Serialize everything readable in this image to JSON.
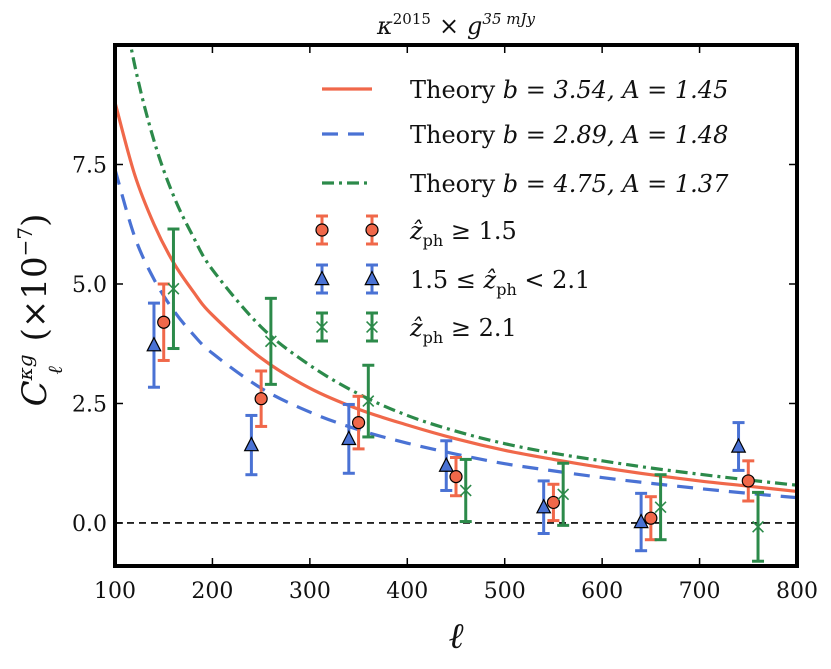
{
  "chart_data": {
    "type": "scatter",
    "title": "κ^2015 × g^35 mJy",
    "title_parts": {
      "base1": "κ",
      "sup1": "2015",
      "times": "×",
      "base2": "g",
      "sup2": "35 mJy"
    },
    "xlabel": "ℓ",
    "ylabel": "C_ℓ^κg (×10^−7)",
    "ylabel_parts": {
      "base": "C",
      "sup": "κg",
      "sub": "ℓ",
      "rest": " (×10",
      "exp": "−7",
      "close": ")"
    },
    "xlim": [
      100,
      800
    ],
    "ylim": [
      -0.9,
      10.0
    ],
    "xticks": [
      100,
      200,
      300,
      400,
      500,
      600,
      700,
      800
    ],
    "xtick_labels": [
      "100",
      "200",
      "300",
      "400",
      "500",
      "600",
      "700",
      "800"
    ],
    "yticks": [
      0.0,
      2.5,
      5.0,
      7.5
    ],
    "ytick_labels": [
      "0.0",
      "2.5",
      "5.0",
      "7.5"
    ],
    "zero_line": true,
    "grid": false,
    "legend_position": "top-right",
    "theory_curves": [
      {
        "name": "Theory b = 3.54, A = 1.45",
        "label_prefix": "Theory ",
        "label_math": "b = 3.54, A = 1.45",
        "color": "#f0684a",
        "style": "solid",
        "x": [
          100,
          120,
          140,
          160,
          180,
          200,
          250,
          300,
          350,
          400,
          450,
          500,
          550,
          600,
          650,
          700,
          750,
          800
        ],
        "y": [
          8.8,
          7.3,
          6.25,
          5.45,
          4.85,
          4.35,
          3.45,
          2.82,
          2.38,
          2.05,
          1.76,
          1.52,
          1.33,
          1.16,
          1.01,
          0.88,
          0.77,
          0.66
        ]
      },
      {
        "name": "Theory b = 2.89, A = 1.48",
        "label_prefix": "Theory ",
        "label_math": "b = 2.89, A = 1.48",
        "color": "#4a72d4",
        "style": "dashed",
        "x": [
          100,
          120,
          140,
          160,
          180,
          200,
          250,
          300,
          350,
          400,
          450,
          500,
          550,
          600,
          650,
          700,
          750,
          800
        ],
        "y": [
          7.4,
          6.0,
          5.1,
          4.45,
          3.95,
          3.55,
          2.82,
          2.32,
          1.95,
          1.67,
          1.44,
          1.24,
          1.09,
          0.95,
          0.83,
          0.72,
          0.62,
          0.53
        ]
      },
      {
        "name": "Theory b = 4.75, A = 1.37",
        "label_prefix": "Theory ",
        "label_math": "b = 4.75, A = 1.37",
        "color": "#2c8a4a",
        "style": "dashdot",
        "x": [
          100,
          120,
          140,
          160,
          180,
          200,
          250,
          300,
          350,
          400,
          450,
          500,
          550,
          600,
          650,
          700,
          750,
          800
        ],
        "y": [
          11.8,
          9.6,
          8.0,
          6.85,
          6.0,
          5.3,
          4.1,
          3.3,
          2.7,
          2.25,
          1.92,
          1.66,
          1.46,
          1.3,
          1.15,
          1.02,
          0.9,
          0.79
        ]
      }
    ],
    "series": [
      {
        "name": "ẑ_ph ≥ 1.5",
        "label_main": "ẑ",
        "label_sub": "ph",
        "label_rest": " ≥ 1.5",
        "marker": "circle",
        "face": "#f0684a",
        "bar_color": "#f0684a",
        "x": [
          150,
          250,
          350,
          450,
          550,
          650,
          750
        ],
        "y": [
          4.2,
          2.6,
          2.1,
          0.97,
          0.43,
          0.1,
          0.88
        ],
        "yerr": [
          0.8,
          0.58,
          0.55,
          0.4,
          0.38,
          0.45,
          0.42
        ]
      },
      {
        "name": "1.5 ≤ ẑ_ph < 2.1",
        "label_pre": "1.5 ≤ ",
        "label_main": "ẑ",
        "label_sub": "ph",
        "label_rest": " < 2.1",
        "marker": "triangle",
        "face": "#4a72d4",
        "bar_color": "#4a72d4",
        "x": [
          140,
          240,
          340,
          440,
          540,
          640,
          740
        ],
        "y": [
          3.72,
          1.63,
          1.76,
          1.2,
          0.33,
          0.02,
          1.6
        ],
        "yerr": [
          0.88,
          0.62,
          0.72,
          0.52,
          0.55,
          0.6,
          0.5
        ]
      },
      {
        "name": "ẑ_ph ≥ 2.1",
        "label_main": "ẑ",
        "label_sub": "ph",
        "label_rest": " ≥ 2.1",
        "marker": "x",
        "face": "#2c8a4a",
        "bar_color": "#2c8a4a",
        "x": [
          160,
          260,
          360,
          460,
          560,
          660,
          760
        ],
        "y": [
          4.9,
          3.8,
          2.55,
          0.68,
          0.6,
          0.33,
          -0.08
        ],
        "yerr": [
          1.25,
          0.9,
          0.75,
          0.65,
          0.65,
          0.68,
          0.72
        ]
      }
    ]
  }
}
